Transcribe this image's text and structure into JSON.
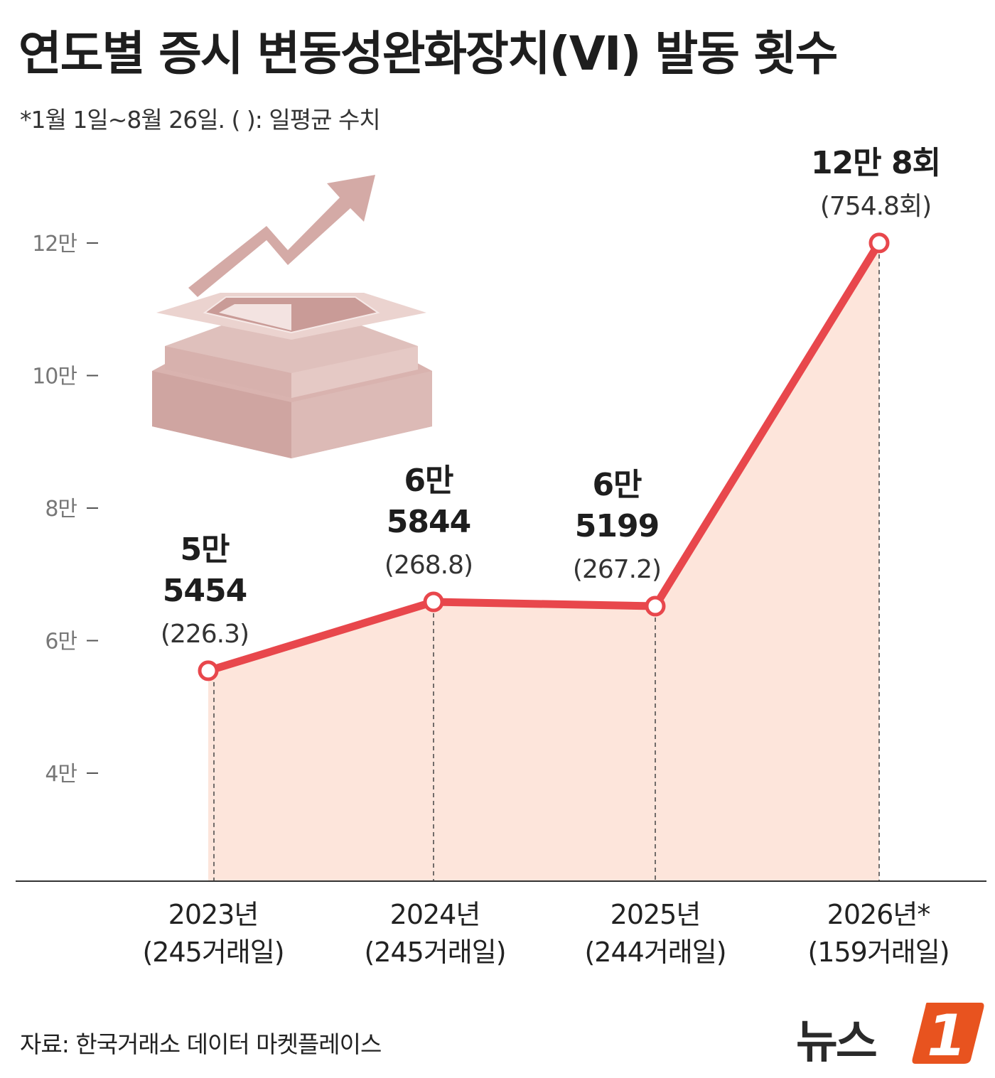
{
  "title": "연도별 증시 변동성완화장치(VI) 발동 횟수",
  "subtitle": "*1월 1일~8월 26일. ( ): 일평균 수치",
  "source": "자료: 한국거래소 데이터 마켓플레이스",
  "logo": {
    "text": "뉴스",
    "badge": "1"
  },
  "colors": {
    "line": "#e8474c",
    "area": "#fde5db",
    "axis": "#333333",
    "tick_label": "#777777",
    "illustration": "#d4aaa6",
    "logo_accent": "#e8531f"
  },
  "chart_data": {
    "type": "area",
    "title": "연도별 증시 변동성완화장치(VI) 발동 횟수",
    "xlabel": "",
    "ylabel": "",
    "ylim": [
      30000,
      120000
    ],
    "grid": false,
    "yticks": [
      {
        "value": 40000,
        "label": "4만"
      },
      {
        "value": 60000,
        "label": "6만"
      },
      {
        "value": 80000,
        "label": "8만"
      },
      {
        "value": 100000,
        "label": "10만"
      },
      {
        "value": 120000,
        "label": "12만"
      }
    ],
    "categories": [
      "2023년",
      "2024년",
      "2025년",
      "2026년*"
    ],
    "trading_days": [
      "(245거래일)",
      "(245거래일)",
      "(244거래일)",
      "(159거래일)"
    ],
    "values": [
      55454,
      65844,
      65199,
      120008
    ],
    "data_labels": [
      {
        "main": [
          "5만",
          "5454"
        ],
        "avg": "(226.3)"
      },
      {
        "main": [
          "6만",
          "5844"
        ],
        "avg": "(268.8)"
      },
      {
        "main": [
          "6만",
          "5199"
        ],
        "avg": "(267.2)"
      },
      {
        "main": [
          "12만 8회"
        ],
        "avg": "(754.8회)"
      }
    ]
  }
}
